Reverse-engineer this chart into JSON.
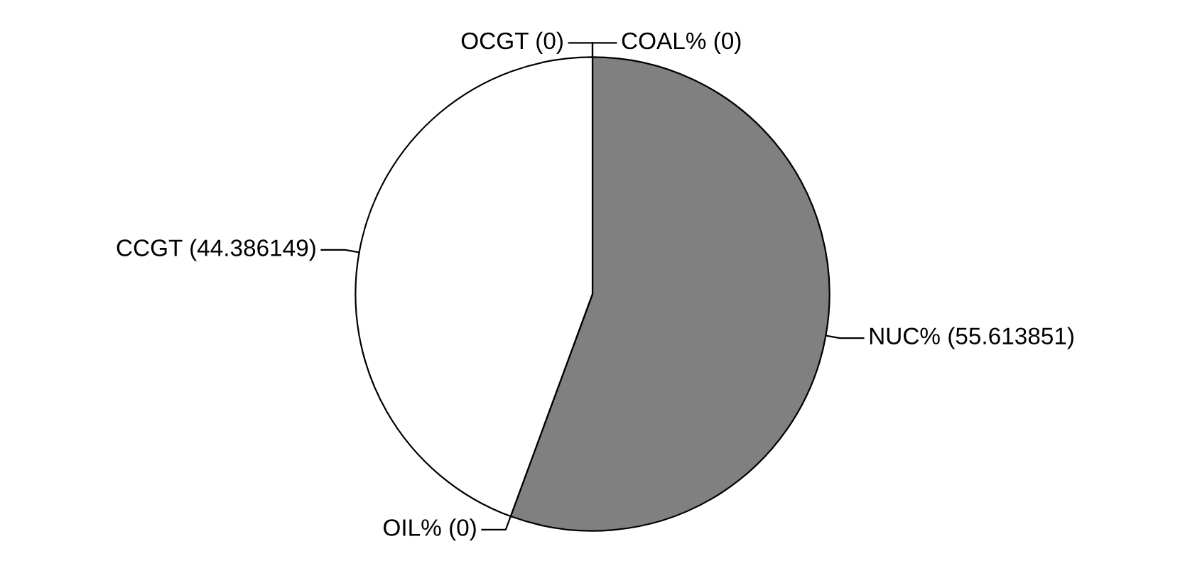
{
  "chart_data": {
    "type": "pie",
    "categories": [
      "COAL% (0)",
      "NUC% (55.613851)",
      "OIL% (0)",
      "CCGT (44.386149)",
      "OCGT (0)"
    ],
    "values": [
      0,
      55.613851,
      0,
      44.386149,
      0
    ],
    "colors": [
      "#ffffff",
      "#808080",
      "#ffffff",
      "#ffffff",
      "#ffffff"
    ]
  }
}
